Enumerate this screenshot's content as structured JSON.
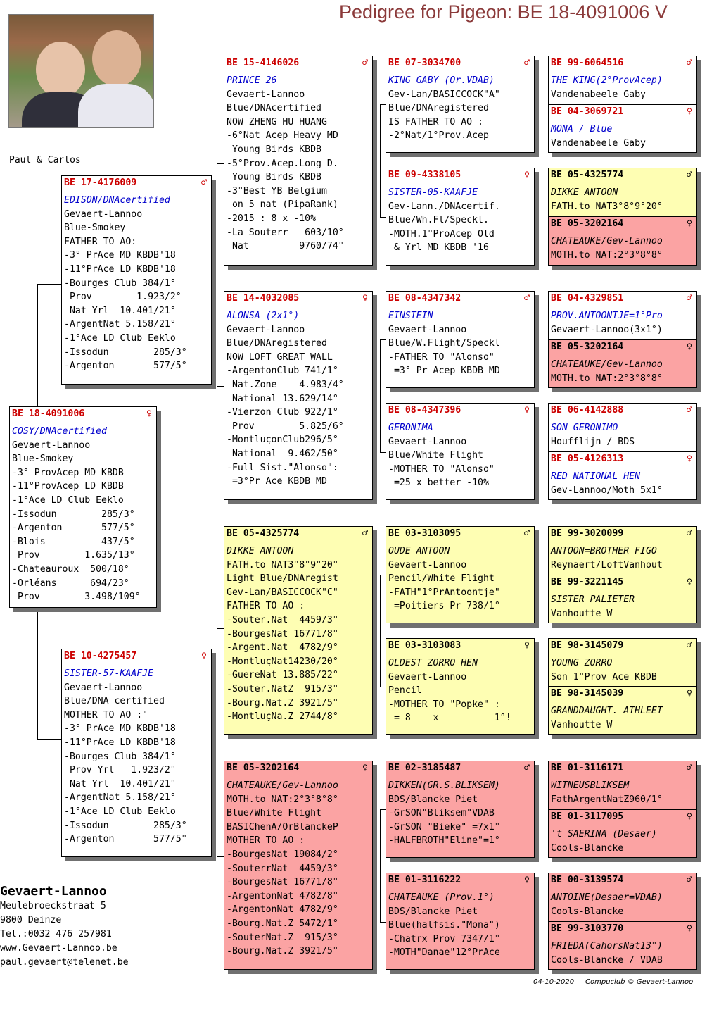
{
  "title": "Pedigree for Pigeon: BE  18-4091006 V",
  "photo_caption": "Paul & Carlos",
  "subject": {
    "ring": "BE  18-4091006",
    "sex": "♀",
    "name": "COSY/DNAcertified",
    "lines": [
      "Gevaert-Lannoo",
      "Blue-Smokey",
      "-3° ProvAcep MD KBDB",
      "-11°ProvAcep LD KBDB",
      "-1°Ace LD Club Eeklo",
      "-Issodun        285/3°",
      "-Argenton       577/5°",
      "-Blois          437/5°",
      " Prov        1.635/13°",
      "-Chateauroux  500/18°",
      "-Orléans      694/23°",
      " Prov        3.498/109°"
    ]
  },
  "father": {
    "ring": "BE  17-4176009",
    "sex": "♂",
    "name": "EDISON/DNAcertified",
    "lines": [
      "Gevaert-Lannoo",
      "Blue-Smokey",
      "FATHER TO AO:",
      "-3° PrAce MD KBDB'18",
      "-11°PrAce LD KBDB'18",
      "-Bourges Club 384/1°",
      " Prov        1.923/2°",
      " Nat Yrl  10.401/21°",
      "-ArgentNat 5.158/21°",
      "-1°Ace LD Club Eeklo",
      "-Issodun        285/3°",
      "-Argenton       577/5°"
    ]
  },
  "mother": {
    "ring": "BE  10-4275457",
    "sex": "♀",
    "name": "SISTER-57-KAAFJE",
    "lines": [
      "Gevaert-Lannoo",
      "Blue/DNA certified",
      "MOTHER TO AO :\"",
      "-3° PrAce MD KBDB'18",
      "-11°PrAce LD KBDB'18",
      "-Bourges Club 384/1°",
      " Prov Yrl   1.923/2°",
      " Nat Yrl  10.401/21°",
      "-ArgentNat 5.158/21°",
      "-1°Ace LD Club Eeklo",
      "-Issodun        285/3°",
      "-Argenton       577/5°"
    ]
  },
  "gp1": {
    "ring": "BE  15-4146026",
    "sex": "♂",
    "name": "PRINCE 26",
    "lines": [
      "Gevaert-Lannoo",
      "Blue/DNAcertified",
      "NOW ZHENG HU HUANG",
      "-6°Nat Acep Heavy MD",
      " Young Birds KBDB",
      "-5°Prov.Acep.Long D.",
      " Young Birds KBDB",
      "-3°Best YB Belgium",
      " on 5 nat (PipaRank)",
      "-2015 : 8 x -10%",
      "-La Souterr   603/10°",
      " Nat         9760/74°"
    ]
  },
  "gp2": {
    "ring": "BE  14-4032085",
    "sex": "♀",
    "name": "ALONSA (2x1°)",
    "lines": [
      "Gevaert-Lannoo",
      "Blue/DNAregistered",
      "NOW LOFT GREAT WALL",
      "-ArgentonClub 741/1°",
      " Nat.Zone    4.983/4°",
      " National 13.629/14°",
      "-Vierzon Club 922/1°",
      " Prov        5.825/6°",
      "-MontluçonClub296/5°",
      " National  9.462/50°",
      "-Full Sist.\"Alonso\":",
      " =3°Pr Ace KBDB MD"
    ]
  },
  "gp3": {
    "ring": "BE  05-4325774",
    "sex": "♂",
    "name": "DIKKE ANTOON",
    "lines": [
      "FATH.to NAT3°8°9°20°",
      "Light Blue/DNAregist",
      "Gev-Lan/BASICCOCK\"C\"",
      "FATHER TO AO :",
      "-Souter.Nat  4459/3°",
      "-BourgesNat 16771/8°",
      "-Argent.Nat  4782/9°",
      "-MontluçNat14230/20°",
      "-GuereNat 13.885/22°",
      "-Souter.NatZ  915/3°",
      "-Bourg.Nat.Z 3921/5°",
      "-MontluçNa.Z 2744/8°"
    ]
  },
  "gp4": {
    "ring": "BE  05-3202164",
    "sex": "♀",
    "name": "CHATEAUKE/Gev-Lannoo",
    "lines": [
      "MOTH.to NAT:2°3°8°8°",
      "Blue/White Flight",
      "BASIChenA/OrBlanckeP",
      "MOTHER TO AO :",
      "-BourgesNat 19084/2°",
      "-SouterrNat  4459/3°",
      "-BourgesNat 16771/8°",
      "-ArgentonNat 4782/8°",
      "-ArgentonNat 4782/9°",
      "-Bourg.Nat.Z 5472/1°",
      "-SouterNat.Z  915/3°",
      "-Bourg.Nat.Z 3921/5°"
    ]
  },
  "g3": [
    {
      "ring": "BE  07-3034700",
      "sex": "♂",
      "name": "KING GABY (Or.VDAB)",
      "lines": [
        "Gev-Lan/BASICCOCK\"A\"",
        "Blue/DNAregistered",
        "IS FATHER TO AO :",
        "-2°Nat/1°Prov.Acep"
      ]
    },
    {
      "ring": "BE  09-4338105",
      "sex": "♀",
      "name": "SISTER-05-KAAFJE",
      "lines": [
        "Gev-Lann./DNAcertif.",
        "Blue/Wh.Fl/Speckl.",
        "-MOTH.1°ProAcep Old",
        " & Yrl MD KBDB '16"
      ]
    },
    {
      "ring": "BE  08-4347342",
      "sex": "♂",
      "name": "EINSTEIN",
      "lines": [
        "Gevaert-Lannoo",
        "Blue/W.Flight/Speckl",
        "-FATHER TO \"Alonso\"",
        " =3° Pr Acep KBDB MD"
      ]
    },
    {
      "ring": "BE  08-4347396",
      "sex": "♀",
      "name": "GERONIMA",
      "lines": [
        "Gevaert-Lannoo",
        "Blue/White Flight",
        "-MOTHER TO \"Alonso\"",
        " =25 x better -10%"
      ]
    },
    {
      "ring": "BE  03-3103095",
      "sex": "♂",
      "name": "OUDE ANTOON",
      "lines": [
        "Gevaert-Lannoo",
        "Pencil/White Flight",
        "-FATH\"1°PrAntoontje\"",
        " =Poitiers Pr 738/1°"
      ]
    },
    {
      "ring": "BE  03-3103083",
      "sex": "♀",
      "name": "OLDEST ZORRO HEN",
      "lines": [
        "Gevaert-Lannoo",
        "Pencil",
        "-MOTHER TO \"Popke\" :",
        " = 8    x          1°!"
      ]
    },
    {
      "ring": "BE  02-3185487",
      "sex": "♂",
      "name": "DIKKEN(GR.S.BLIKSEM)",
      "lines": [
        "BDS/Blancke Piet",
        "-GrSON\"Bliksem\"VDAB",
        "-GrSON \"Bieke\" =7x1°",
        "-HALFBROTH\"Eline\"=1°"
      ]
    },
    {
      "ring": "BE  01-3116222",
      "sex": "♀",
      "name": "CHATEAUKE (Prov.1°)",
      "lines": [
        "BDS/Blancke Piet",
        "Blue(halfsis.\"Mona\")",
        "-Chatrx Prov 7347/1°",
        "-MOTH\"Danae\"12°PrAce"
      ]
    }
  ],
  "g4": [
    {
      "ring": "BE  99-6064516",
      "sex": "♂",
      "name": "THE KING(2°ProvAcep)",
      "line": "Vandenabeele Gaby"
    },
    {
      "ring": "BE  04-3069721",
      "sex": "♀",
      "name": "MONA / Blue",
      "line": "Vandenabeele Gaby"
    },
    {
      "ring": "BE  05-4325774",
      "sex": "♂",
      "name": "DIKKE ANTOON",
      "line": "FATH.to NAT3°8°9°20°"
    },
    {
      "ring": "BE  05-3202164",
      "sex": "♀",
      "name": "CHATEAUKE/Gev-Lannoo",
      "line": "MOTH.to NAT:2°3°8°8°"
    },
    {
      "ring": "BE  04-4329851",
      "sex": "♂",
      "name": "PROV.ANTOONTJE=1°Pro",
      "line": "Gevaert-Lannoo(3x1°)"
    },
    {
      "ring": "BE  05-3202164",
      "sex": "♀",
      "name": "CHATEAUKE/Gev-Lannoo",
      "line": "MOTH.to NAT:2°3°8°8°"
    },
    {
      "ring": "BE  06-4142888",
      "sex": "♂",
      "name": "SON GERONIMO",
      "line": "Houfflijn / BDS"
    },
    {
      "ring": "BE  05-4126313",
      "sex": "♀",
      "name": "RED NATIONAL HEN",
      "line": "Gev-Lannoo/Moth 5x1°"
    },
    {
      "ring": "BE  99-3020099",
      "sex": "♂",
      "name": "ANTOON=BROTHER FIGO",
      "line": "Reynaert/LoftVanhout"
    },
    {
      "ring": "BE  99-3221145",
      "sex": "♀",
      "name": "SISTER  PALIETER",
      "line": "Vanhoutte W"
    },
    {
      "ring": "BE  98-3145079",
      "sex": "♂",
      "name": "YOUNG ZORRO",
      "line": "Son 1°Prov Ace KBDB"
    },
    {
      "ring": "BE  98-3145039",
      "sex": "♀",
      "name": "GRANDDAUGHT. ATHLEET",
      "line": "Vanhoutte W"
    },
    {
      "ring": "BE  01-3116171",
      "sex": "♂",
      "name": "WITNEUSBLIKSEM",
      "line": "FathArgentNatZ960/1°"
    },
    {
      "ring": "BE  01-3117095",
      "sex": "♀",
      "name": "'t SAERINA (Desaer)",
      "line": "Cools-Blancke"
    },
    {
      "ring": "BE  00-3139574",
      "sex": "♂",
      "name": "ANTOINE(Desaer=VDAB)",
      "line": "Cools-Blancke"
    },
    {
      "ring": "BE  99-3103770",
      "sex": "♀",
      "name": "FRIEDA(CahorsNat13°)",
      "line": "Cools-Blancke / VDAB"
    }
  ],
  "owner": {
    "name": "Gevaert-Lannoo",
    "street": "Meulebroeckstraat 5",
    "city": "9800  Deinze",
    "tel": "Tel.:0032 476 257981",
    "web": "www.Gevaert-Lannoo.be",
    "email": "paul.gevaert@telenet.be"
  },
  "footer": {
    "date": "04-10-2020",
    "credit": "Compuclub © Gevaert-Lannoo"
  },
  "colors": {
    "title": "#8b3a3a",
    "ring_red": "#cc0000",
    "name_blue": "#0000cc",
    "yellow_card": "#fefeb3",
    "red_card": "#fba3a3"
  }
}
